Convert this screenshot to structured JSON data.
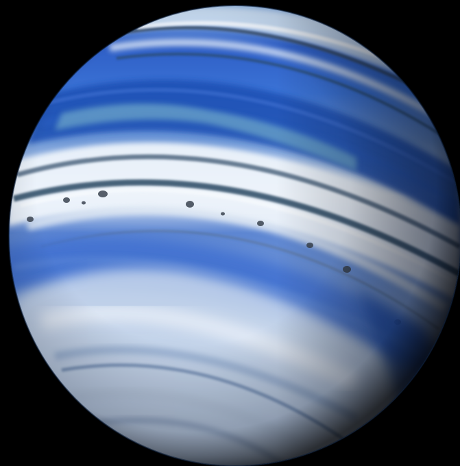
{
  "scene": {
    "subject": "banded-blue-gas-giant",
    "colors": {
      "space": "#000000",
      "deep_blue": "#1f4fb3",
      "mid_blue": "#3f6fd0",
      "light_blue": "#8fb2e6",
      "cloud_white": "#eef4fb",
      "dark_stripe": "#2c4863",
      "storm_spot": "#3b4450",
      "haze_gray": "#a7b9d2"
    },
    "icons": {
      "planet": "planet-icon"
    }
  }
}
